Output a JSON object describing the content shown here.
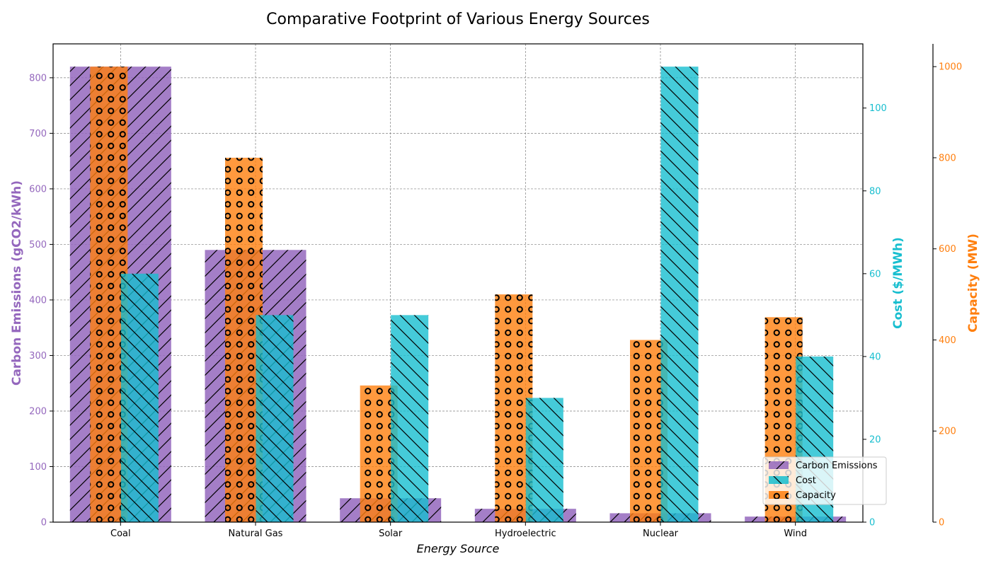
{
  "chart_data": {
    "type": "bar",
    "title": "Comparative Footprint of Various Energy Sources",
    "xlabel": "Energy Source",
    "categories": [
      "Coal",
      "Natural Gas",
      "Solar",
      "Hydroelectric",
      "Nuclear",
      "Wind"
    ],
    "series": [
      {
        "name": "Carbon Emissions",
        "axis": "left",
        "values": [
          820,
          490,
          43,
          24,
          16,
          10
        ],
        "color": "#9467bd",
        "hatch": "diagonal-forward"
      },
      {
        "name": "Cost",
        "axis": "right1",
        "values": [
          60,
          50,
          50,
          30,
          110,
          40
        ],
        "color": "#17becf",
        "hatch": "diagonal-back"
      },
      {
        "name": "Capacity",
        "axis": "right2",
        "values": [
          1000,
          800,
          300,
          500,
          400,
          450
        ],
        "color": "#ff7f0e",
        "hatch": "circles"
      }
    ],
    "axes": {
      "left": {
        "label": "Carbon Emissions (gCO2/kWh)",
        "color": "#9467bd",
        "lim": [
          0,
          861
        ],
        "ticks": [
          0,
          100,
          200,
          300,
          400,
          500,
          600,
          700,
          800
        ]
      },
      "right1": {
        "label": "Cost ($/MWh)",
        "color": "#17becf",
        "lim": [
          0,
          115.5
        ],
        "ticks": [
          0,
          20,
          40,
          60,
          80,
          100
        ]
      },
      "right2": {
        "label": "Capacity (MW)",
        "color": "#ff7f0e",
        "lim": [
          0,
          1050
        ],
        "ticks": [
          0,
          200,
          400,
          600,
          800,
          1000
        ]
      }
    },
    "grid": true,
    "legend_position": "lower right"
  }
}
